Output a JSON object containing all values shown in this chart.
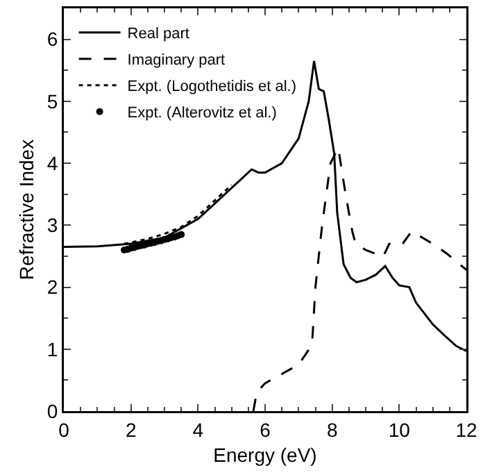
{
  "chart_data": {
    "type": "line",
    "xlabel": "Energy (eV)",
    "ylabel": "Refractive Index",
    "xlim": [
      0,
      12
    ],
    "ylim": [
      0,
      6.5
    ],
    "xticks": [
      0,
      2,
      4,
      6,
      8,
      10,
      12
    ],
    "yticks": [
      0,
      1,
      2,
      3,
      4,
      5,
      6
    ],
    "grid": false,
    "legend": "top left",
    "series": [
      {
        "name": "Real part",
        "color": "#000000",
        "line_style": "solid",
        "x": [
          0,
          1,
          2,
          3,
          4,
          4.5,
          5,
          5.3,
          5.6,
          5.8,
          6,
          6.5,
          7,
          7.3,
          7.46,
          7.6,
          7.75,
          7.9,
          8.06,
          8.15,
          8.34,
          8.55,
          8.73,
          9,
          9.3,
          9.58,
          9.8,
          10,
          10.3,
          10.5,
          11,
          11.35,
          11.7,
          12
        ],
        "values": [
          2.65,
          2.66,
          2.7,
          2.8,
          3.1,
          3.35,
          3.6,
          3.75,
          3.9,
          3.85,
          3.85,
          4.0,
          4.4,
          5.0,
          5.65,
          5.2,
          5.16,
          4.7,
          4.16,
          3.2,
          2.37,
          2.15,
          2.08,
          2.12,
          2.2,
          2.34,
          2.15,
          2.03,
          2.0,
          1.75,
          1.4,
          1.22,
          1.05,
          0.97
        ]
      },
      {
        "name": "Imaginary part",
        "color": "#000000",
        "line_style": "dashed",
        "x": [
          5.65,
          5.75,
          6,
          6.5,
          7,
          7.4,
          7.5,
          7.7,
          7.85,
          7.95,
          8.18,
          8.4,
          8.6,
          8.7,
          9,
          9.52,
          9.7,
          10,
          10.1,
          10.37,
          11,
          11.4,
          12
        ],
        "values": [
          0,
          0.3,
          0.45,
          0.6,
          0.75,
          1.07,
          2.0,
          3.0,
          3.6,
          4.0,
          4.25,
          3.5,
          2.9,
          2.7,
          2.6,
          2.49,
          2.7,
          2.68,
          2.7,
          2.9,
          2.7,
          2.55,
          2.28
        ]
      },
      {
        "name": "Expt. (Logothetidis et al.)",
        "color": "#000000",
        "line_style": "dotted",
        "x": [
          1.8,
          2,
          2.5,
          3,
          3.5,
          4,
          4.5,
          5
        ],
        "values": [
          2.7,
          2.72,
          2.78,
          2.86,
          2.97,
          3.15,
          3.4,
          3.65
        ]
      },
      {
        "name": "Expt. (Alterovitz et al.)",
        "type": "scatter",
        "marker": "circle",
        "color": "#000000",
        "x": [
          1.8,
          1.9,
          2,
          2.1,
          2.2,
          2.3,
          2.4,
          2.5,
          2.6,
          2.7,
          2.8,
          2.9,
          3,
          3.1,
          3.2,
          3.3,
          3.4,
          3.5
        ],
        "values": [
          2.6,
          2.61,
          2.63,
          2.64,
          2.66,
          2.67,
          2.68,
          2.7,
          2.71,
          2.72,
          2.74,
          2.75,
          2.77,
          2.78,
          2.8,
          2.81,
          2.83,
          2.85
        ]
      }
    ]
  }
}
